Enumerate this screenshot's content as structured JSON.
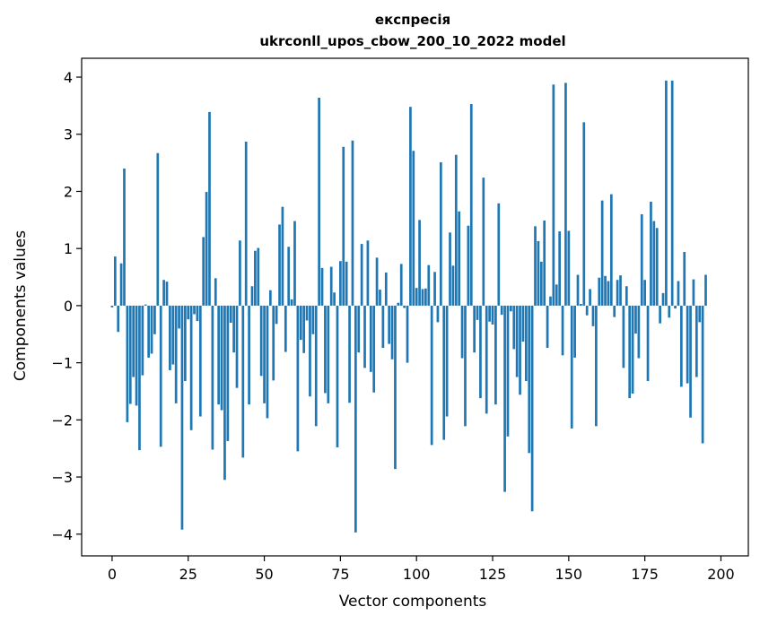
{
  "chart_data": {
    "type": "bar",
    "title_line1": "експресія",
    "title_line2": "ukrconll_upos_cbow_200_10_2022 model",
    "xlabel": "Vector components",
    "ylabel": "Components values",
    "xlim": [
      -10,
      209
    ],
    "ylim": [
      -4.38,
      4.33
    ],
    "xticks": [
      0,
      25,
      50,
      75,
      100,
      125,
      150,
      175,
      200
    ],
    "yticks": [
      -4,
      -3,
      -2,
      -1,
      0,
      1,
      2,
      3,
      4
    ],
    "color": "#1f77b4",
    "values": [
      -0.03,
      0.86,
      -0.46,
      0.74,
      2.4,
      -2.04,
      -1.72,
      -1.25,
      -1.75,
      -2.53,
      -1.22,
      0.02,
      -0.91,
      -0.84,
      -0.5,
      2.67,
      -2.47,
      0.45,
      0.42,
      -1.13,
      -1.03,
      -1.71,
      -0.4,
      -3.92,
      -1.32,
      -0.24,
      -2.18,
      -0.15,
      -0.27,
      -1.94,
      1.2,
      1.99,
      3.39,
      -2.52,
      0.48,
      -1.73,
      -1.83,
      -3.05,
      -2.37,
      -0.3,
      -0.82,
      -1.44,
      1.14,
      -2.66,
      2.87,
      -1.73,
      0.34,
      0.96,
      1.01,
      -1.23,
      -1.71,
      -1.97,
      0.27,
      -1.31,
      -0.32,
      1.42,
      1.73,
      -0.81,
      1.03,
      0.11,
      1.48,
      -2.55,
      -0.6,
      -0.83,
      -0.26,
      -1.59,
      -0.5,
      -2.11,
      3.64,
      0.66,
      -1.53,
      -1.71,
      0.68,
      0.23,
      -2.48,
      0.78,
      2.78,
      0.77,
      -1.7,
      2.89,
      -3.97,
      -0.82,
      1.08,
      -1.09,
      1.14,
      -1.16,
      -1.52,
      0.84,
      0.28,
      -0.74,
      0.58,
      -0.67,
      -0.94,
      -2.86,
      0.05,
      0.73,
      -0.04,
      -1.0,
      3.48,
      2.71,
      0.31,
      1.5,
      0.29,
      0.3,
      0.71,
      -2.44,
      0.59,
      -0.29,
      2.51,
      -2.35,
      -1.94,
      1.28,
      0.7,
      2.64,
      1.65,
      -0.92,
      -2.11,
      1.4,
      3.53,
      -0.82,
      -0.25,
      -1.62,
      2.24,
      -1.89,
      -0.28,
      -0.33,
      -1.73,
      1.79,
      -0.16,
      -3.26,
      -2.29,
      -0.1,
      -0.76,
      -1.25,
      -1.56,
      -0.63,
      -1.32,
      -2.58,
      -3.6,
      1.39,
      1.13,
      0.77,
      1.49,
      -0.74,
      0.16,
      3.87,
      0.37,
      1.3,
      -0.87,
      3.9,
      1.31,
      -2.15,
      -0.91,
      0.54,
      0.03,
      3.21,
      -0.17,
      0.29,
      -0.36,
      -2.11,
      0.49,
      1.84,
      0.52,
      0.43,
      1.95,
      -0.2,
      0.45,
      0.53,
      -1.09,
      0.34,
      -1.62,
      -1.54,
      -0.49,
      -0.92,
      1.6,
      0.45,
      -1.32,
      1.82,
      1.48,
      1.36,
      -0.31,
      0.22,
      3.94,
      -0.21,
      3.94,
      -0.05,
      0.43,
      -1.42,
      0.94,
      -1.36,
      -1.96,
      0.46,
      -1.25,
      -0.29,
      -2.41,
      0.54
    ]
  }
}
